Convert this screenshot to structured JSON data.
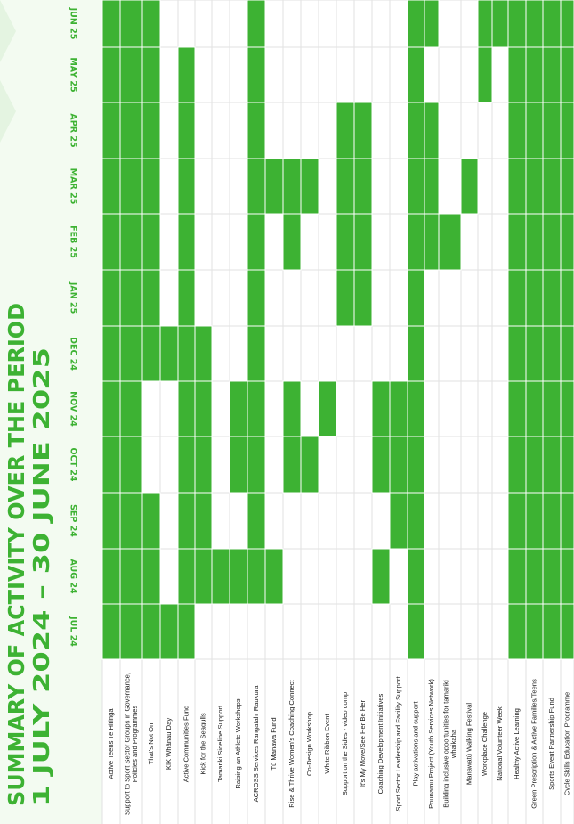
{
  "chart_data": {
    "type": "gantt",
    "title": "SUMMARY OF ACTIVITY OVER THE PERIOD",
    "subtitle": "1 JULY 2024 – 30 JUNE 2025",
    "color": "#3db233",
    "categories": [
      "JUL 24",
      "AUG 24",
      "SEP 24",
      "OCT 24",
      "NOV 24",
      "DEC 24",
      "JAN 25",
      "FEB 25",
      "MAR 25",
      "APR 25",
      "MAY 25",
      "JUN 25"
    ],
    "tasks": [
      {
        "name": [
          "Active Teens Te Hiringa"
        ],
        "active": [
          1,
          1,
          1,
          1,
          1,
          1,
          1,
          1,
          1,
          1,
          1,
          1
        ]
      },
      {
        "name": [
          "Support to Sport Sector Groups in Governance,",
          "Policies and Programmes"
        ],
        "active": [
          1,
          1,
          1,
          1,
          1,
          1,
          1,
          1,
          1,
          1,
          1,
          1
        ]
      },
      {
        "name": [
          "That's Not On"
        ],
        "active": [
          1,
          1,
          1,
          0,
          0,
          1,
          1,
          1,
          1,
          1,
          1,
          1
        ]
      },
      {
        "name": [
          "KIK Whānau Day"
        ],
        "active": [
          1,
          0,
          0,
          0,
          0,
          1,
          0,
          0,
          0,
          0,
          0,
          0
        ]
      },
      {
        "name": [
          "Active Communities Fund"
        ],
        "active": [
          1,
          1,
          1,
          1,
          1,
          1,
          1,
          1,
          1,
          1,
          1,
          0
        ]
      },
      {
        "name": [
          "Kick for the Seagulls"
        ],
        "active": [
          0,
          1,
          1,
          1,
          1,
          1,
          0,
          0,
          0,
          0,
          0,
          0
        ]
      },
      {
        "name": [
          "Tamariki Sideline Support"
        ],
        "active": [
          0,
          1,
          0,
          0,
          0,
          0,
          0,
          0,
          0,
          0,
          0,
          0
        ]
      },
      {
        "name": [
          "Raising an Athlete Workshops"
        ],
        "active": [
          0,
          1,
          0,
          1,
          1,
          0,
          0,
          0,
          0,
          0,
          0,
          0
        ]
      },
      {
        "name": [
          "ACROSS Services Rangatahi Raukura"
        ],
        "active": [
          0,
          1,
          1,
          1,
          1,
          1,
          1,
          1,
          1,
          1,
          1,
          1
        ]
      },
      {
        "name": [
          "Tū Manawa Fund"
        ],
        "active": [
          0,
          1,
          0,
          0,
          0,
          0,
          0,
          0,
          1,
          0,
          0,
          0
        ]
      },
      {
        "name": [
          "Rise & Thrive Women's Coaching Connect"
        ],
        "active": [
          0,
          0,
          0,
          1,
          1,
          0,
          0,
          1,
          1,
          0,
          0,
          0
        ]
      },
      {
        "name": [
          "Co-Design Workshop"
        ],
        "active": [
          0,
          0,
          0,
          1,
          0,
          0,
          0,
          0,
          1,
          0,
          0,
          0
        ]
      },
      {
        "name": [
          "White Ribbon Event"
        ],
        "active": [
          0,
          0,
          0,
          0,
          1,
          0,
          0,
          0,
          0,
          0,
          0,
          0
        ]
      },
      {
        "name": [
          "Support on the Sides - video comp"
        ],
        "active": [
          0,
          0,
          0,
          0,
          0,
          0,
          1,
          1,
          1,
          1,
          0,
          0
        ]
      },
      {
        "name": [
          "It's My Move/See Her Be Her"
        ],
        "active": [
          0,
          0,
          0,
          0,
          0,
          0,
          1,
          1,
          1,
          1,
          0,
          0
        ]
      },
      {
        "name": [
          "Coaching Development Initiatives"
        ],
        "active": [
          0,
          1,
          0,
          1,
          1,
          0,
          0,
          0,
          0,
          0,
          0,
          0
        ]
      },
      {
        "name": [
          "Sport Sector Leadership and Facility Support"
        ],
        "active": [
          0,
          0,
          1,
          1,
          1,
          0,
          0,
          0,
          0,
          0,
          0,
          0
        ]
      },
      {
        "name": [
          "Play activations and support"
        ],
        "active": [
          1,
          1,
          1,
          1,
          1,
          1,
          1,
          1,
          1,
          1,
          1,
          1
        ]
      },
      {
        "name": [
          "Pounamu Project (Youth Services Network)"
        ],
        "active": [
          0,
          0,
          0,
          0,
          0,
          0,
          0,
          1,
          1,
          1,
          0,
          1
        ]
      },
      {
        "name": [
          "Building inclusive opportunities for tamariki",
          "whaikaha"
        ],
        "active": [
          0,
          0,
          0,
          0,
          0,
          0,
          0,
          1,
          0,
          0,
          0,
          0
        ]
      },
      {
        "name": [
          "Manawatū Walking Festival"
        ],
        "active": [
          0,
          0,
          0,
          0,
          0,
          0,
          0,
          0,
          1,
          0,
          0,
          0
        ]
      },
      {
        "name": [
          "Workplace Challenge"
        ],
        "active": [
          0,
          0,
          0,
          0,
          0,
          0,
          0,
          0,
          0,
          0,
          1,
          1
        ]
      },
      {
        "name": [
          "National Volunteer Week"
        ],
        "active": [
          0,
          0,
          0,
          0,
          0,
          0,
          0,
          0,
          0,
          0,
          0,
          1
        ]
      },
      {
        "name": [
          "Healthy Active Learning"
        ],
        "active": [
          1,
          1,
          1,
          1,
          1,
          1,
          1,
          1,
          1,
          1,
          1,
          1
        ]
      },
      {
        "name": [
          "Green Prescription & Active Families/Teens"
        ],
        "active": [
          1,
          1,
          1,
          1,
          1,
          1,
          1,
          1,
          1,
          1,
          1,
          1
        ]
      },
      {
        "name": [
          "Sports Event Partnership Fund"
        ],
        "active": [
          1,
          1,
          1,
          1,
          1,
          1,
          1,
          1,
          1,
          1,
          1,
          1
        ]
      },
      {
        "name": [
          "Cycle Skills Education Programme"
        ],
        "active": [
          1,
          1,
          1,
          1,
          1,
          1,
          1,
          1,
          1,
          1,
          1,
          1
        ]
      }
    ]
  }
}
